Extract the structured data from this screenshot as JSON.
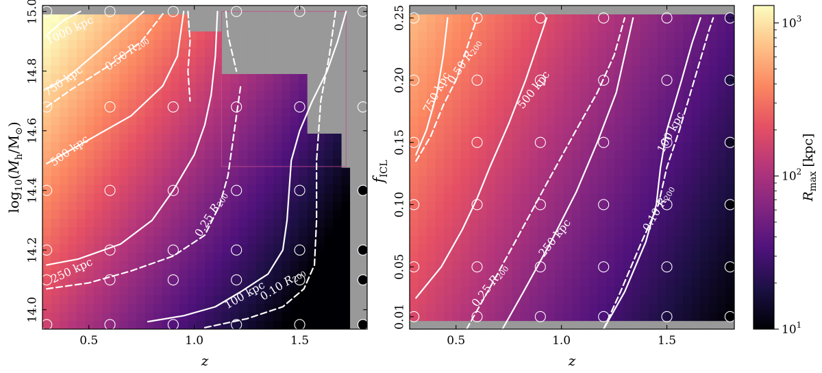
{
  "colors": {
    "masked": "#999999",
    "contour": "#ffffff",
    "colormap": "magma",
    "magma_stops": [
      "#000004",
      "#1c1044",
      "#4f127b",
      "#812581",
      "#b5367a",
      "#e55064",
      "#fb8761",
      "#fec287",
      "#fcfdbf"
    ]
  },
  "chart_data": [
    {
      "type": "heatmap",
      "panel": "left",
      "xlabel": "z",
      "ylabel": "log10(Mh/M⊙)",
      "ylabel_parts": {
        "log": "log",
        "sub10": "10",
        "open": "(",
        "M": "M",
        "sub_h": "h",
        "slash": "/M",
        "sub_sun": "⊙",
        "close": ")"
      },
      "xlim": [
        0.28,
        1.82
      ],
      "ylim": [
        13.935,
        15.02
      ],
      "xticks": [
        0.5,
        1.0,
        1.5
      ],
      "xtick_labels": [
        "0.5",
        "1.0",
        "1.5"
      ],
      "yticks": [
        14.0,
        14.2,
        14.4,
        14.6,
        14.8,
        15.0
      ],
      "ytick_labels": [
        "14.0",
        "14.2",
        "14.4",
        "14.6",
        "14.8",
        "15.0"
      ],
      "grid": false,
      "sample_z": [
        0.3,
        0.6,
        0.9,
        1.2,
        1.5,
        1.8
      ],
      "sample_y": [
        13.95,
        14.1,
        14.2,
        14.4,
        14.68,
        15.0
      ],
      "samples_dark_right_column": [
        13.95,
        14.1,
        14.2,
        14.4
      ],
      "contours": [
        {
          "label": "1000 kpc",
          "style": "solid",
          "points": [
            [
              0.3,
              14.92
            ],
            [
              0.38,
              14.97
            ],
            [
              0.46,
              15.0
            ]
          ]
        },
        {
          "label": "750 kpc",
          "style": "solid",
          "points": [
            [
              0.3,
              14.74
            ],
            [
              0.4,
              14.78
            ],
            [
              0.55,
              14.87
            ],
            [
              0.68,
              14.95
            ],
            [
              0.76,
              15.0
            ]
          ]
        },
        {
          "label": "0.50 R200",
          "style": "dashed",
          "points": [
            [
              0.3,
              14.68
            ],
            [
              0.42,
              14.74
            ],
            [
              0.6,
              14.82
            ],
            [
              0.75,
              14.9
            ],
            [
              0.86,
              15.0
            ]
          ]
        },
        {
          "label": "500 kpc",
          "style": "solid",
          "points": [
            [
              0.3,
              14.49
            ],
            [
              0.45,
              14.55
            ],
            [
              0.7,
              14.65
            ],
            [
              0.85,
              14.75
            ],
            [
              0.92,
              14.85
            ],
            [
              0.95,
              15.0
            ]
          ]
        },
        {
          "label": "",
          "style": "dashed",
          "points": [
            [
              0.97,
              15.0
            ],
            [
              0.98,
              14.9
            ],
            [
              0.97,
              14.8
            ],
            [
              0.98,
              14.7
            ]
          ]
        },
        {
          "label": "250 kpc",
          "style": "solid",
          "points": [
            [
              0.3,
              14.15
            ],
            [
              0.45,
              14.17
            ],
            [
              0.65,
              14.22
            ],
            [
              0.8,
              14.3
            ],
            [
              0.9,
              14.4
            ],
            [
              1.0,
              14.52
            ],
            [
              1.05,
              14.62
            ],
            [
              1.08,
              14.72
            ],
            [
              1.1,
              14.85
            ],
            [
              1.11,
              15.0
            ]
          ]
        },
        {
          "label": "0.25 R200",
          "style": "dashed",
          "points": [
            [
              0.3,
              14.07
            ],
            [
              0.5,
              14.09
            ],
            [
              0.7,
              14.13
            ],
            [
              0.9,
              14.18
            ],
            [
              1.05,
              14.25
            ],
            [
              1.12,
              14.35
            ],
            [
              1.16,
              14.45
            ],
            [
              1.18,
              14.55
            ],
            [
              1.2,
              14.65
            ],
            [
              1.22,
              14.75
            ]
          ]
        },
        {
          "label": "",
          "style": "dashed",
          "points": [
            [
              1.15,
              15.0
            ],
            [
              1.16,
              14.92
            ],
            [
              1.18,
              14.86
            ],
            [
              1.2,
              14.8
            ]
          ]
        },
        {
          "label": "100 kpc",
          "style": "solid",
          "points": [
            [
              0.78,
              13.96
            ],
            [
              0.95,
              13.98
            ],
            [
              1.1,
              14.01
            ],
            [
              1.22,
              14.06
            ],
            [
              1.35,
              14.12
            ],
            [
              1.42,
              14.2
            ],
            [
              1.44,
              14.3
            ],
            [
              1.45,
              14.4
            ],
            [
              1.46,
              14.5
            ],
            [
              1.5,
              14.6
            ],
            [
              1.56,
              14.7
            ],
            [
              1.63,
              14.8
            ],
            [
              1.68,
              14.9
            ],
            [
              1.72,
              15.0
            ]
          ]
        },
        {
          "label": "0.10 R200",
          "style": "dashed",
          "points": [
            [
              1.05,
              13.94
            ],
            [
              1.25,
              13.97
            ],
            [
              1.42,
              14.01
            ],
            [
              1.52,
              14.07
            ],
            [
              1.57,
              14.15
            ],
            [
              1.58,
              14.3
            ],
            [
              1.58,
              14.5
            ],
            [
              1.6,
              14.7
            ],
            [
              1.64,
              14.85
            ],
            [
              1.67,
              15.0
            ]
          ]
        }
      ],
      "contour_labels": [
        {
          "text": "1000 kpc",
          "at": [
            0.41,
            14.935
          ],
          "angle": -26
        },
        {
          "text": "750 kpc",
          "at": [
            0.38,
            14.765
          ],
          "angle": -35
        },
        {
          "text": "0.50 R200",
          "at": [
            0.68,
            14.86
          ],
          "angle": -36
        },
        {
          "text": "500 kpc",
          "at": [
            0.41,
            14.532
          ],
          "angle": -36
        },
        {
          "text": "250 kpc",
          "at": [
            0.42,
            14.13
          ],
          "angle": -25
        },
        {
          "text": "0.25 R200",
          "at": [
            1.08,
            14.32
          ],
          "angle": -58
        },
        {
          "text": "100 kpc",
          "at": [
            1.24,
            14.048
          ],
          "angle": -30
        },
        {
          "text": "0.10 R200",
          "at": [
            1.42,
            14.085
          ],
          "angle": -32
        }
      ]
    },
    {
      "type": "heatmap",
      "panel": "right",
      "xlabel": "z",
      "ylabel": "fICL",
      "ylabel_parts": {
        "f": "f",
        "sub": "ICL"
      },
      "xlim": [
        0.28,
        1.82
      ],
      "ylim": [
        0.0,
        0.26
      ],
      "xticks": [
        0.5,
        1.0,
        1.5
      ],
      "xtick_labels": [
        "0.5",
        "1.0",
        "1.5"
      ],
      "yticks": [
        0.01,
        0.05,
        0.1,
        0.15,
        0.2,
        0.25
      ],
      "ytick_labels": [
        "0.01",
        "0.05",
        "0.10",
        "0.15",
        "0.20",
        "0.25"
      ],
      "grid": false,
      "sample_z": [
        0.3,
        0.6,
        0.9,
        1.2,
        1.5,
        1.8
      ],
      "sample_y": [
        0.01,
        0.05,
        0.1,
        0.15,
        0.2,
        0.25
      ],
      "contours": [
        {
          "label": "750 kpc",
          "style": "solid",
          "points": [
            [
              0.31,
              0.14
            ],
            [
              0.36,
              0.16
            ],
            [
              0.41,
              0.19
            ],
            [
              0.44,
              0.22
            ],
            [
              0.46,
              0.25
            ]
          ]
        },
        {
          "label": "0.50 R200",
          "style": "dashed",
          "points": [
            [
              0.31,
              0.135
            ],
            [
              0.38,
              0.155
            ],
            [
              0.44,
              0.18
            ],
            [
              0.5,
              0.2
            ],
            [
              0.56,
              0.23
            ],
            [
              0.6,
              0.25
            ]
          ]
        },
        {
          "label": "500 kpc",
          "style": "solid",
          "points": [
            [
              0.31,
              0.025
            ],
            [
              0.43,
              0.05
            ],
            [
              0.53,
              0.08
            ],
            [
              0.6,
              0.105
            ],
            [
              0.66,
              0.13
            ],
            [
              0.75,
              0.165
            ],
            [
              0.83,
              0.2
            ],
            [
              0.9,
              0.235
            ],
            [
              0.93,
              0.25
            ]
          ]
        },
        {
          "label": "0.25 R200",
          "style": "dashed",
          "points": [
            [
              0.55,
              0.0
            ],
            [
              0.65,
              0.03
            ],
            [
              0.78,
              0.07
            ],
            [
              0.94,
              0.12
            ],
            [
              1.07,
              0.16
            ],
            [
              1.17,
              0.19
            ],
            [
              1.25,
              0.22
            ],
            [
              1.3,
              0.25
            ]
          ]
        },
        {
          "label": "250 kpc",
          "style": "solid",
          "points": [
            [
              0.72,
              0.0
            ],
            [
              0.82,
              0.03
            ],
            [
              0.95,
              0.07
            ],
            [
              1.07,
              0.11
            ],
            [
              1.17,
              0.15
            ],
            [
              1.26,
              0.19
            ],
            [
              1.3,
              0.22
            ],
            [
              1.34,
              0.25
            ]
          ]
        },
        {
          "label": "100 kpc",
          "style": "solid",
          "points": [
            [
              1.2,
              0.0
            ],
            [
              1.3,
              0.03
            ],
            [
              1.4,
              0.07
            ],
            [
              1.45,
              0.1
            ],
            [
              1.47,
              0.13
            ],
            [
              1.5,
              0.16
            ],
            [
              1.57,
              0.2
            ],
            [
              1.62,
              0.23
            ],
            [
              1.66,
              0.25
            ]
          ]
        },
        {
          "label": "0.10 R200",
          "style": "dashed",
          "points": [
            [
              1.2,
              0.0
            ],
            [
              1.28,
              0.03
            ],
            [
              1.38,
              0.07
            ],
            [
              1.46,
              0.1
            ],
            [
              1.5,
              0.13
            ],
            [
              1.56,
              0.16
            ],
            [
              1.63,
              0.2
            ],
            [
              1.7,
              0.24
            ],
            [
              1.72,
              0.25
            ]
          ]
        }
      ],
      "contour_labels": [
        {
          "text": "750 kpc",
          "at": [
            0.41,
            0.19
          ],
          "angle": -62
        },
        {
          "text": "0.50 R200",
          "at": [
            0.54,
            0.215
          ],
          "angle": -56
        },
        {
          "text": "500 kpc",
          "at": [
            0.87,
            0.192
          ],
          "angle": -52
        },
        {
          "text": "250 kpc",
          "at": [
            0.97,
            0.073
          ],
          "angle": -52
        },
        {
          "text": "0.25 R200",
          "at": [
            0.66,
            0.035
          ],
          "angle": -52
        },
        {
          "text": "100 kpc",
          "at": [
            1.52,
            0.158
          ],
          "angle": -62
        },
        {
          "text": "0.10 R200",
          "at": [
            1.46,
            0.097
          ],
          "angle": -60
        }
      ]
    }
  ],
  "colorbar": {
    "label": "Rmax [kpc]",
    "label_parts": {
      "R": "R",
      "sub": "max",
      "rest": " [kpc]"
    },
    "scale": "log",
    "range": [
      10,
      1300
    ],
    "tick_values": [
      10,
      100,
      1000
    ],
    "ticks": [
      {
        "base": "10",
        "exp": "1"
      },
      {
        "base": "10",
        "exp": "2"
      },
      {
        "base": "10",
        "exp": "3"
      }
    ]
  }
}
